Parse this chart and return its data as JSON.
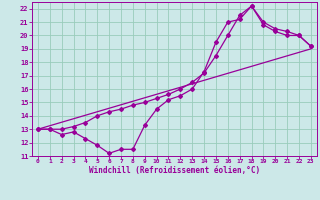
{
  "xlabel": "Windchill (Refroidissement éolien,°C)",
  "bg_color": "#cce8e8",
  "grid_color": "#99ccbb",
  "line_color": "#990099",
  "xlim": [
    -0.5,
    23.5
  ],
  "ylim": [
    11,
    22.5
  ],
  "xticks": [
    0,
    1,
    2,
    3,
    4,
    5,
    6,
    7,
    8,
    9,
    10,
    11,
    12,
    13,
    14,
    15,
    16,
    17,
    18,
    19,
    20,
    21,
    22,
    23
  ],
  "yticks": [
    11,
    12,
    13,
    14,
    15,
    16,
    17,
    18,
    19,
    20,
    21,
    22
  ],
  "line1_x": [
    0,
    1,
    2,
    3,
    4,
    5,
    6,
    7,
    8,
    9,
    10,
    11,
    12,
    13,
    14,
    15,
    16,
    17,
    18,
    19,
    20,
    21,
    22,
    23
  ],
  "line1_y": [
    13,
    13,
    12.6,
    12.8,
    12.3,
    11.8,
    11.2,
    11.5,
    11.5,
    13.3,
    14.5,
    15.2,
    15.5,
    16.0,
    17.3,
    19.5,
    21.0,
    21.2,
    22.2,
    21.0,
    20.5,
    20.3,
    20.0,
    19.2
  ],
  "line2_x": [
    0,
    23
  ],
  "line2_y": [
    13,
    19
  ],
  "line3_x": [
    0,
    1,
    2,
    3,
    4,
    5,
    6,
    7,
    8,
    9,
    10,
    11,
    12,
    13,
    14,
    15,
    16,
    17,
    18,
    19,
    20,
    21,
    22,
    23
  ],
  "line3_y": [
    13,
    13,
    13,
    13.2,
    13.5,
    14.0,
    14.3,
    14.5,
    14.8,
    15.0,
    15.3,
    15.6,
    16.0,
    16.5,
    17.2,
    18.5,
    20.0,
    21.5,
    22.2,
    20.8,
    20.3,
    20.0,
    20.0,
    19.2
  ],
  "line1_has_markers": true,
  "line2_has_markers": false,
  "line3_has_markers": true
}
